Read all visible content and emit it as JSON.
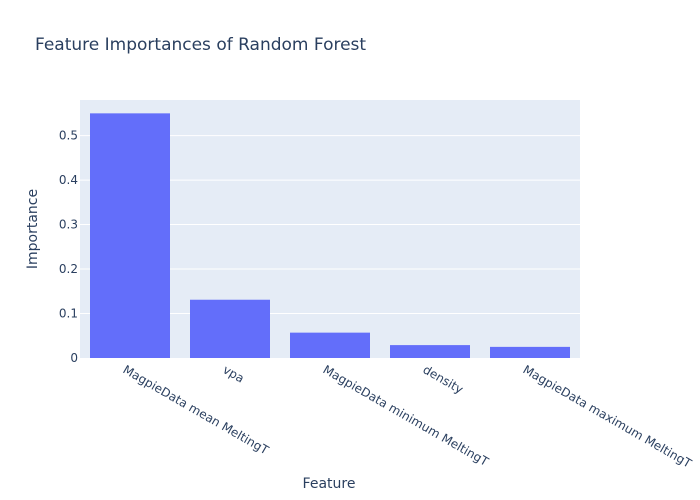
{
  "chart_data": {
    "type": "bar",
    "title": "Feature Importances of Random Forest",
    "xlabel": "Feature",
    "ylabel": "Importance",
    "categories": [
      "MagpieData mean MeltingT",
      "vpa",
      "MagpieData minimum MeltingT",
      "density",
      "MagpieData maximum MeltingT"
    ],
    "values": [
      0.55,
      0.131,
      0.057,
      0.029,
      0.025
    ],
    "ylim": [
      0,
      0.58
    ],
    "yticks": [
      0,
      0.1,
      0.2,
      0.3,
      0.4,
      0.5
    ],
    "ytick_labels": [
      "0",
      "0.1",
      "0.2",
      "0.3",
      "0.4",
      "0.5"
    ],
    "grid": true,
    "colors": {
      "bar": "#636efa",
      "plot_bg": "#e5ecf6",
      "grid": "#ffffff",
      "text": "#2a3f5f"
    }
  }
}
